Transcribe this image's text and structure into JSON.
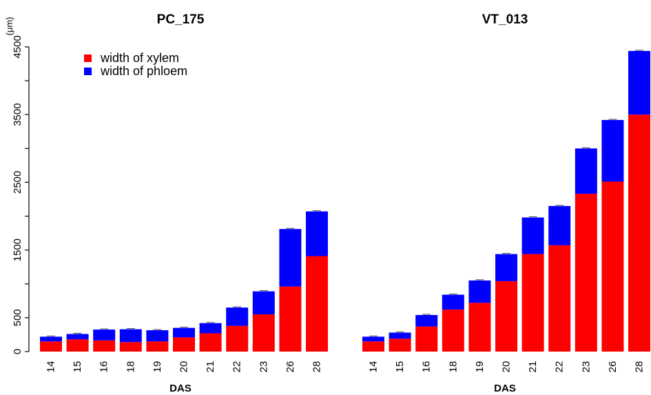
{
  "chart_data": {
    "type": "bar",
    "stacked": true,
    "ylabel": "(μm)",
    "ylim": [
      0,
      4500
    ],
    "y_ticks": [
      0,
      500,
      1000,
      1500,
      2000,
      2500,
      3000,
      3500,
      4000,
      4500
    ],
    "y_tick_labels": [
      "0",
      "500",
      "",
      "1500",
      "",
      "2500",
      "",
      "3500",
      "",
      "4500"
    ],
    "grid": false,
    "legend": {
      "placement": "top-left",
      "entries": [
        {
          "label": "width of xylem",
          "color": "#ff0000"
        },
        {
          "label": "width of phloem",
          "color": "#0000ff"
        }
      ]
    },
    "panels": [
      {
        "title": "PC_175",
        "xlabel": "DAS",
        "categories": [
          "14",
          "15",
          "16",
          "18",
          "19",
          "20",
          "21",
          "22",
          "23",
          "26",
          "28"
        ],
        "series": [
          {
            "name": "width of xylem",
            "color": "#ff0000",
            "values": [
              150,
              180,
              165,
              140,
              150,
              210,
              270,
              380,
              550,
              960,
              1410
            ]
          },
          {
            "name": "width of phloem",
            "color": "#0000ff",
            "values": [
              70,
              80,
              160,
              190,
              165,
              140,
              150,
              270,
              340,
              850,
              660
            ]
          }
        ]
      },
      {
        "title": "VT_013",
        "xlabel": "DAS",
        "categories": [
          "14",
          "15",
          "16",
          "18",
          "19",
          "20",
          "21",
          "22",
          "23",
          "26",
          "28"
        ],
        "series": [
          {
            "name": "width of xylem",
            "color": "#ff0000",
            "values": [
              150,
              190,
              370,
              620,
              720,
              1040,
              1440,
              1570,
              2330,
              2510,
              3500
            ]
          },
          {
            "name": "width of phloem",
            "color": "#0000ff",
            "values": [
              70,
              90,
              170,
              220,
              330,
              400,
              540,
              580,
              670,
              910,
              940
            ]
          }
        ]
      }
    ]
  }
}
